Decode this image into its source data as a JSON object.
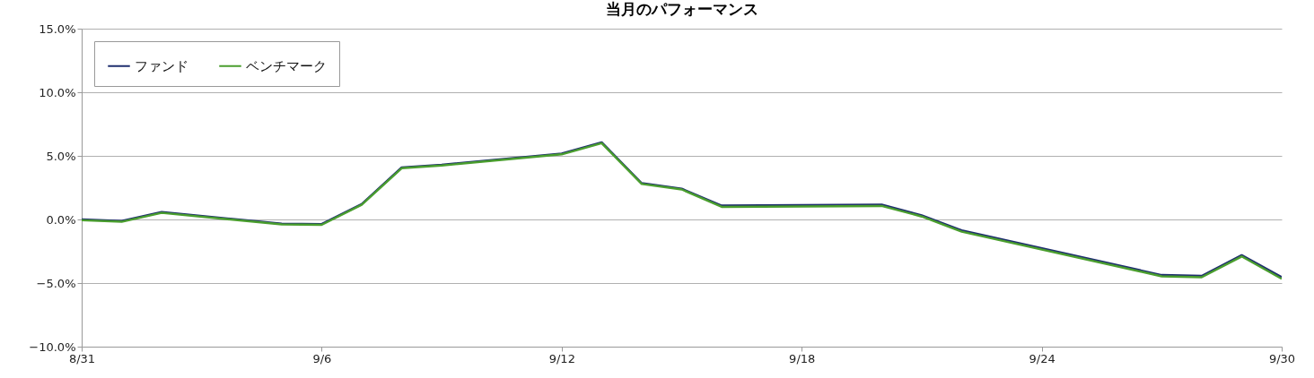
{
  "chart_data": {
    "type": "line",
    "title": "当月のパフォーマンス",
    "x": [
      "--08-31",
      "--09-01",
      "--09-02",
      "--09-05",
      "--09-06",
      "--09-07",
      "--09-08",
      "--09-09",
      "--09-12",
      "--09-13",
      "--09-14",
      "--09-15",
      "--09-16",
      "--09-20",
      "--09-21",
      "--09-22",
      "--09-27",
      "--09-28",
      "--09-29",
      "--09-30"
    ],
    "series": [
      {
        "name": "ファンド",
        "color": "#1f2f6e",
        "values": [
          0,
          -0.12,
          0.58,
          -0.33,
          -0.36,
          1.21,
          4.09,
          4.3,
          5.18,
          6.06,
          2.85,
          2.42,
          1.09,
          1.16,
          0.33,
          -0.86,
          -4.37,
          -4.44,
          -2.81,
          -4.54
        ]
      },
      {
        "name": "ベンチマーク",
        "color": "#4a9e2e",
        "values": [
          -0.06,
          -0.18,
          0.52,
          -0.39,
          -0.42,
          1.15,
          4.03,
          4.24,
          5.12,
          6.0,
          2.79,
          2.36,
          0.99,
          1.06,
          0.23,
          -0.96,
          -4.47,
          -4.54,
          -2.91,
          -4.67
        ]
      }
    ],
    "xlim": [
      "--08-31",
      "--09-30"
    ],
    "xticks": [
      {
        "value": "--08-31",
        "label": "8/31"
      },
      {
        "value": "--09-06",
        "label": "9/6"
      },
      {
        "value": "--09-12",
        "label": "9/12"
      },
      {
        "value": "--09-18",
        "label": "9/18"
      },
      {
        "value": "--09-24",
        "label": "9/24"
      },
      {
        "value": "--09-30",
        "label": "9/30"
      }
    ],
    "ylim": [
      -10,
      15
    ],
    "yticks": [
      {
        "value": -10,
        "label": "−10.0%"
      },
      {
        "value": -5,
        "label": "−5.0%"
      },
      {
        "value": 0,
        "label": "0.0%"
      },
      {
        "value": 5,
        "label": "5.0%"
      },
      {
        "value": 10,
        "label": "10.0%"
      },
      {
        "value": 15,
        "label": "15.0%"
      }
    ],
    "grid": "y",
    "legend": "top left",
    "marker": "none",
    "line_style": "solid"
  }
}
